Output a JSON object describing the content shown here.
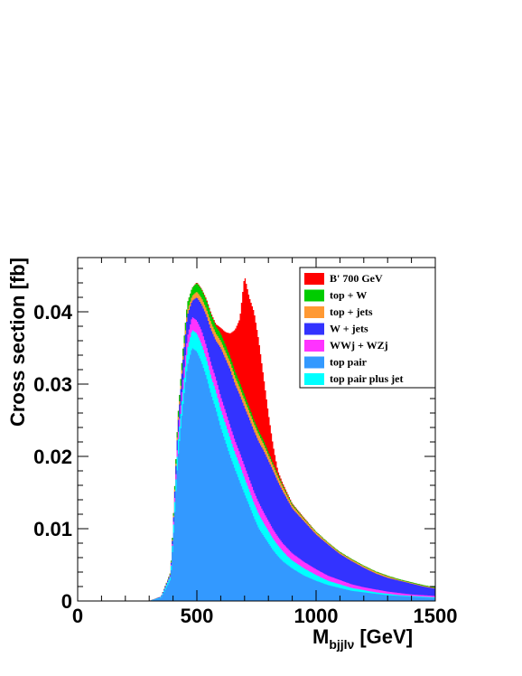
{
  "chart_data": {
    "type": "area",
    "stacked": true,
    "histogram": true,
    "x_unit_label": "[GeV]",
    "xlabel_main": "M",
    "xlabel_sub": "bjjlν",
    "ylabel": "Cross section [fb]",
    "xlim": [
      0,
      1500
    ],
    "ylim": [
      0,
      0.0475
    ],
    "x_ticks": [
      {
        "v": 0,
        "label": "0"
      },
      {
        "v": 500,
        "label": "500"
      },
      {
        "v": 1000,
        "label": "1000"
      },
      {
        "v": 1500,
        "label": "1500"
      }
    ],
    "y_ticks": [
      {
        "v": 0,
        "label": "0"
      },
      {
        "v": 0.01,
        "label": "0.01"
      },
      {
        "v": 0.02,
        "label": "0.02"
      },
      {
        "v": 0.03,
        "label": "0.03"
      },
      {
        "v": 0.04,
        "label": "0.04"
      }
    ],
    "legend_position": "top-right",
    "series_order_bottom_to_top": [
      "top pair",
      "top pair plus jet",
      "WWj + WZj",
      "W + jets",
      "top + jets",
      "top + W",
      "B' 700 GeV"
    ],
    "legend": [
      {
        "name": "B' 700 GeV",
        "color": "#ff0000"
      },
      {
        "name": "top + W",
        "color": "#00cc00"
      },
      {
        "name": "top + jets",
        "color": "#ff9933"
      },
      {
        "name": "W + jets",
        "color": "#3333ff"
      },
      {
        "name": "WWj + WZj",
        "color": "#ff33ff"
      },
      {
        "name": "top pair",
        "color": "#3399ff"
      },
      {
        "name": "top pair plus jet",
        "color": "#00ffff"
      }
    ],
    "x": [
      300,
      350,
      390,
      400,
      420,
      440,
      460,
      480,
      500,
      520,
      540,
      560,
      580,
      600,
      620,
      640,
      660,
      680,
      700,
      720,
      740,
      760,
      780,
      800,
      820,
      840,
      860,
      880,
      900,
      950,
      1000,
      1050,
      1100,
      1150,
      1200,
      1250,
      1300,
      1350,
      1400,
      1450,
      1500
    ],
    "cumulative_tops": [
      {
        "name": "top pair",
        "color": "#3399ff",
        "values": [
          0,
          0.0004,
          0.003,
          0.008,
          0.0195,
          0.0265,
          0.0325,
          0.035,
          0.0345,
          0.033,
          0.031,
          0.0285,
          0.0265,
          0.024,
          0.022,
          0.02,
          0.0182,
          0.0165,
          0.0148,
          0.0132,
          0.0115,
          0.01,
          0.009,
          0.008,
          0.007,
          0.0062,
          0.0055,
          0.005,
          0.0045,
          0.0035,
          0.0028,
          0.0022,
          0.0018,
          0.0014,
          0.0012,
          0.001,
          0.0008,
          0.0007,
          0.0006,
          0.0005,
          0.0004
        ]
      },
      {
        "name": "top pair plus jet",
        "color": "#00ffff",
        "values": [
          0,
          0.0005,
          0.0035,
          0.009,
          0.0215,
          0.0285,
          0.0348,
          0.0375,
          0.037,
          0.0355,
          0.0335,
          0.031,
          0.029,
          0.0265,
          0.0245,
          0.0225,
          0.0205,
          0.0188,
          0.017,
          0.0153,
          0.0135,
          0.012,
          0.0108,
          0.0097,
          0.0086,
          0.0077,
          0.0069,
          0.0062,
          0.0056,
          0.0045,
          0.0036,
          0.0028,
          0.0023,
          0.0018,
          0.0015,
          0.0012,
          0.001,
          0.0008,
          0.0007,
          0.0006,
          0.0005
        ]
      },
      {
        "name": "WWj + WZj",
        "color": "#ff33ff",
        "values": [
          0,
          0.0005,
          0.0036,
          0.0093,
          0.0225,
          0.0298,
          0.0365,
          0.0393,
          0.0388,
          0.0374,
          0.0353,
          0.0328,
          0.0308,
          0.0283,
          0.0263,
          0.0242,
          0.0222,
          0.0205,
          0.0187,
          0.0169,
          0.0151,
          0.0136,
          0.0123,
          0.0111,
          0.0099,
          0.0089,
          0.008,
          0.0073,
          0.0066,
          0.0054,
          0.0044,
          0.0035,
          0.0029,
          0.0023,
          0.0019,
          0.0016,
          0.0013,
          0.0011,
          0.0009,
          0.0008,
          0.0007
        ]
      },
      {
        "name": "W + jets",
        "color": "#3333ff",
        "values": [
          0,
          0.0006,
          0.0038,
          0.0098,
          0.024,
          0.0325,
          0.0395,
          0.0415,
          0.042,
          0.041,
          0.0395,
          0.0375,
          0.036,
          0.035,
          0.0335,
          0.032,
          0.03,
          0.0285,
          0.0268,
          0.0252,
          0.0235,
          0.022,
          0.0208,
          0.0194,
          0.018,
          0.0165,
          0.0152,
          0.014,
          0.0128,
          0.011,
          0.0092,
          0.0078,
          0.0065,
          0.0055,
          0.0046,
          0.0038,
          0.0032,
          0.0028,
          0.0024,
          0.002,
          0.0017
        ]
      },
      {
        "name": "top + jets",
        "color": "#ff9933",
        "values": [
          0,
          0.0006,
          0.0039,
          0.01,
          0.0244,
          0.033,
          0.0401,
          0.0422,
          0.0428,
          0.0419,
          0.0404,
          0.0385,
          0.037,
          0.036,
          0.0345,
          0.033,
          0.031,
          0.0295,
          0.0278,
          0.0262,
          0.0245,
          0.023,
          0.0217,
          0.0202,
          0.0187,
          0.0172,
          0.0158,
          0.0145,
          0.0132,
          0.0113,
          0.0095,
          0.008,
          0.0067,
          0.0057,
          0.0048,
          0.004,
          0.0034,
          0.0029,
          0.0025,
          0.0021,
          0.0018
        ]
      },
      {
        "name": "top + W",
        "color": "#00cc00",
        "values": [
          0,
          0.0006,
          0.004,
          0.0103,
          0.0252,
          0.034,
          0.0412,
          0.0433,
          0.044,
          0.0431,
          0.0416,
          0.0396,
          0.038,
          0.037,
          0.0354,
          0.0338,
          0.0318,
          0.0302,
          0.0285,
          0.0268,
          0.025,
          0.0235,
          0.0222,
          0.0206,
          0.019,
          0.0175,
          0.016,
          0.0147,
          0.0134,
          0.0114,
          0.0096,
          0.0081,
          0.0068,
          0.0058,
          0.0049,
          0.0041,
          0.0035,
          0.003,
          0.0026,
          0.0022,
          0.0019
        ]
      },
      {
        "name": "B' 700 GeV",
        "color": "#ff0000",
        "values": [
          0,
          0.0006,
          0.004,
          0.0103,
          0.0252,
          0.034,
          0.0412,
          0.0433,
          0.0441,
          0.0432,
          0.0418,
          0.0398,
          0.0383,
          0.0378,
          0.0372,
          0.037,
          0.0375,
          0.039,
          0.045,
          0.042,
          0.04,
          0.036,
          0.031,
          0.026,
          0.0215,
          0.018,
          0.0163,
          0.0149,
          0.0135,
          0.0115,
          0.0096,
          0.0081,
          0.0068,
          0.0058,
          0.0049,
          0.0041,
          0.0035,
          0.003,
          0.0026,
          0.0022,
          0.0019
        ]
      }
    ]
  }
}
